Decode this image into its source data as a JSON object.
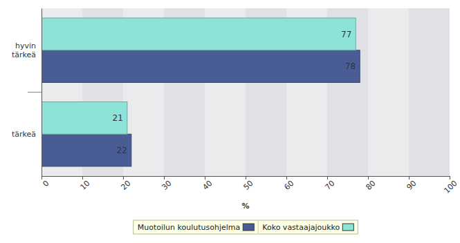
{
  "chart_data": {
    "type": "bar",
    "orientation": "horizontal",
    "categories": [
      "hyvin tärkeä",
      "tärkeä"
    ],
    "series": [
      {
        "name": "Muotoilun koulutusohjelma",
        "color": "#4a5c96",
        "values": [
          78,
          22
        ]
      },
      {
        "name": "Koko vastaajajoukko",
        "color": "#8ee3d8",
        "values": [
          77,
          21
        ]
      }
    ],
    "xlim": [
      0,
      100
    ],
    "xticks": [
      0,
      10,
      20,
      30,
      40,
      50,
      60,
      70,
      80,
      90,
      100
    ],
    "xlabel": "%",
    "grid": true,
    "data_labels": true,
    "legend": "bottom"
  }
}
